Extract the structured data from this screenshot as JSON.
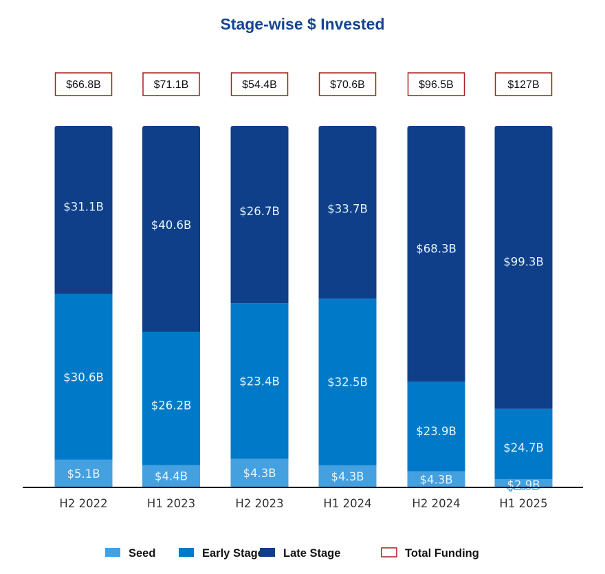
{
  "chart_data": {
    "type": "bar",
    "stacking": "percent",
    "title": "Stage-wise $ Invested",
    "xlabel": "",
    "ylabel": "",
    "categories": [
      "H2 2022",
      "H1 2023",
      "H2 2023",
      "H1 2024",
      "H2 2024",
      "H1 2025"
    ],
    "series": [
      {
        "name": "Seed",
        "color": "#45a0e0",
        "values": [
          5.1,
          4.4,
          4.3,
          4.3,
          4.3,
          2.9
        ],
        "labels": [
          "$5.1B",
          "$4.4B",
          "$4.3B",
          "$4.3B",
          "$4.3B",
          "$2.9B"
        ]
      },
      {
        "name": "Early Stage",
        "color": "#007ac8",
        "values": [
          30.6,
          26.2,
          23.4,
          32.5,
          23.9,
          24.7
        ],
        "labels": [
          "$30.6B",
          "$26.2B",
          "$23.4B",
          "$32.5B",
          "$23.9B",
          "$24.7B"
        ]
      },
      {
        "name": "Late Stage",
        "color": "#0f3f89",
        "values": [
          31.1,
          40.6,
          26.7,
          33.7,
          68.3,
          99.3
        ],
        "labels": [
          "$31.1B",
          "$40.6B",
          "$26.7B",
          "$33.7B",
          "$68.3B",
          "$99.3B"
        ]
      }
    ],
    "totals": {
      "name": "Total Funding",
      "color": "#a81c1c",
      "values": [
        66.8,
        71.1,
        54.4,
        70.6,
        96.5,
        127
      ],
      "labels": [
        "$66.8B",
        "$71.1B",
        "$54.4B",
        "$70.6B",
        "$96.5B",
        "$127B"
      ]
    },
    "unit": "USD billions",
    "legend": {
      "position": "bottom",
      "entries": [
        "Seed",
        "Early Stage",
        "Late Stage",
        "Total Funding"
      ]
    },
    "grid": false
  }
}
